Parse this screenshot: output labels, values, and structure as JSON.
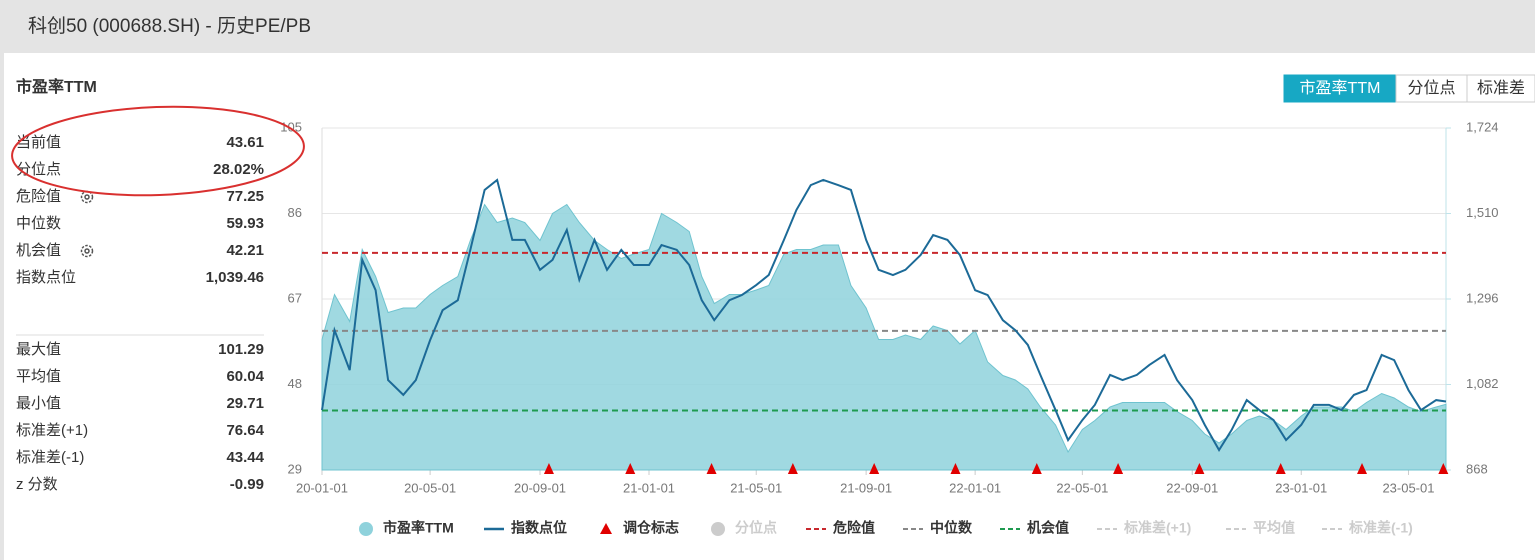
{
  "header": {
    "title": "科创50 (000688.SH) - 历史PE/PB"
  },
  "panel": {
    "title": "市盈率TTM",
    "stats": [
      {
        "label": "当前值",
        "value": 43.61
      },
      {
        "label": "分位点",
        "value": {
          "value": 28.02,
          "label": "28.02%"
        }
      },
      {
        "label": "危险值",
        "value": 77.25
      },
      {
        "label": "中位数",
        "value": 59.93
      },
      {
        "label": "机会值",
        "value": 42.21
      },
      {
        "label": "指数点位",
        "value": {
          "value": 1039.46,
          "label": "1,039.46"
        }
      }
    ],
    "stats2": [
      {
        "label": "最大值",
        "value": 101.29
      },
      {
        "label": "平均值",
        "value": 60.04
      },
      {
        "label": "最小值",
        "value": 29.71
      },
      {
        "label": "标准差(+1)",
        "value": 76.64
      },
      {
        "label": "标准差(-1)",
        "value": 43.44
      },
      {
        "label": "z 分数",
        "value": -0.99
      }
    ]
  },
  "tabs": {
    "items": [
      "市盈率TTM",
      "分位点",
      "标准差"
    ],
    "active": 0
  },
  "chart_data": {
    "type": "line",
    "x": [
      "20-01-01",
      "20-01-15",
      "20-02-01",
      "20-02-15",
      "20-03-01",
      "20-03-15",
      "20-04-01",
      "20-04-15",
      "20-05-01",
      "20-05-15",
      "20-06-01",
      "20-06-15",
      "20-07-01",
      "20-07-15",
      "20-08-01",
      "20-08-15",
      "20-09-01",
      "20-09-15",
      "20-10-01",
      "20-10-15",
      "20-11-01",
      "20-11-15",
      "20-12-01",
      "20-12-15",
      "21-01-01",
      "21-01-15",
      "21-02-01",
      "21-02-15",
      "21-03-01",
      "21-03-15",
      "21-04-01",
      "21-04-15",
      "21-05-01",
      "21-05-15",
      "21-06-01",
      "21-06-15",
      "21-07-01",
      "21-07-15",
      "21-08-01",
      "21-08-15",
      "21-09-01",
      "21-09-15",
      "21-10-01",
      "21-10-15",
      "21-11-01",
      "21-11-15",
      "21-12-01",
      "21-12-15",
      "22-01-01",
      "22-01-15",
      "22-02-01",
      "22-02-15",
      "22-03-01",
      "22-03-15",
      "22-04-01",
      "22-04-15",
      "22-05-01",
      "22-05-15",
      "22-06-01",
      "22-06-15",
      "22-07-01",
      "22-07-15",
      "22-08-01",
      "22-08-15",
      "22-09-01",
      "22-09-15",
      "22-10-01",
      "22-10-15",
      "22-11-01",
      "22-11-15",
      "22-12-01",
      "22-12-15",
      "23-01-01",
      "23-01-15",
      "23-02-01",
      "23-02-15",
      "23-03-01",
      "23-03-15",
      "23-04-01",
      "23-04-15",
      "23-05-01",
      "23-05-15",
      "23-06-01",
      "23-06-12"
    ],
    "xlim": [
      "20-01-01",
      "23-06-12"
    ],
    "xticks": [
      "20-01-01",
      "20-05-01",
      "20-09-01",
      "21-01-01",
      "21-05-01",
      "21-09-01",
      "22-01-01",
      "22-05-01",
      "22-09-01",
      "23-01-01",
      "23-05-01"
    ],
    "ylim": [
      29,
      105
    ],
    "yticks": [
      29,
      48,
      67,
      86,
      105
    ],
    "y2lim": [
      868,
      1724
    ],
    "y2ticks": [
      868,
      {
        "value": 1082,
        "label": "1,082"
      },
      {
        "value": 1296,
        "label": "1,296"
      },
      {
        "value": 1510,
        "label": "1,510"
      },
      {
        "value": 1724,
        "label": "1,724"
      }
    ],
    "grid": true,
    "series": [
      {
        "name": "市盈率TTM",
        "type": "area",
        "color": "#8fd2dc",
        "values": [
          58,
          68,
          62,
          78,
          72,
          64,
          65,
          65,
          68,
          70,
          72,
          80,
          88,
          84,
          85,
          84,
          80,
          86,
          88,
          84,
          80,
          78,
          76,
          77,
          78,
          86,
          84,
          82,
          72,
          66,
          68,
          68,
          69,
          70,
          77,
          78,
          78,
          79,
          79,
          70,
          65,
          58,
          58,
          59,
          58,
          61,
          60,
          57,
          60,
          53,
          50,
          49,
          47,
          43,
          39,
          33,
          38,
          40,
          43,
          44,
          44,
          44,
          44,
          42,
          40,
          37,
          35,
          37,
          40,
          41,
          40,
          38,
          41,
          43,
          43,
          43,
          42,
          44,
          46,
          45,
          43,
          42,
          43,
          43.61
        ]
      },
      {
        "name": "指数点位",
        "type": "line",
        "axis": "y2",
        "color": "#1c6a97",
        "values": [
          1018,
          1218,
          1118,
          1394,
          1318,
          1093,
          1056,
          1093,
          1193,
          1268,
          1293,
          1419,
          1569,
          1594,
          1444,
          1444,
          1369,
          1394,
          1469,
          1344,
          1444,
          1369,
          1419,
          1381,
          1381,
          1431,
          1419,
          1381,
          1293,
          1243,
          1293,
          1306,
          1331,
          1356,
          1444,
          1519,
          1581,
          1594,
          1581,
          1569,
          1444,
          1369,
          1356,
          1369,
          1406,
          1456,
          1444,
          1406,
          1318,
          1306,
          1243,
          1218,
          1181,
          1106,
          1018,
          943,
          993,
          1031,
          1106,
          1093,
          1106,
          1131,
          1156,
          1093,
          1043,
          981,
          918,
          968,
          1043,
          1018,
          993,
          943,
          981,
          1031,
          1031,
          1018,
          1056,
          1068,
          1156,
          1143,
          1068,
          1018,
          1043,
          1039.46
        ]
      },
      {
        "name": "调仓标志",
        "type": "marker",
        "color": "#e00000",
        "x": [
          "20-09-11",
          "20-12-11",
          "21-03-12",
          "21-06-11",
          "21-09-10",
          "21-12-10",
          "22-03-11",
          "22-06-10",
          "22-09-09",
          "22-12-09",
          "23-03-10",
          "23-06-09"
        ]
      },
      {
        "name": "分位点",
        "type": "circle",
        "color": "#cccccc",
        "visible": false
      },
      {
        "name": "危险值",
        "type": "hline",
        "color": "#c8282d",
        "value": 77.25
      },
      {
        "name": "中位数",
        "type": "hline",
        "color": "#888888",
        "value": 59.93
      },
      {
        "name": "机会值",
        "type": "hline",
        "color": "#1e9a50",
        "value": 42.21
      },
      {
        "name": "标准差(+1)",
        "type": "hline",
        "color": "#cccccc",
        "visible": false
      },
      {
        "name": "平均值",
        "type": "hline",
        "color": "#cccccc",
        "visible": false
      },
      {
        "name": "标准差(-1)",
        "type": "hline",
        "color": "#cccccc",
        "visible": false
      }
    ]
  }
}
